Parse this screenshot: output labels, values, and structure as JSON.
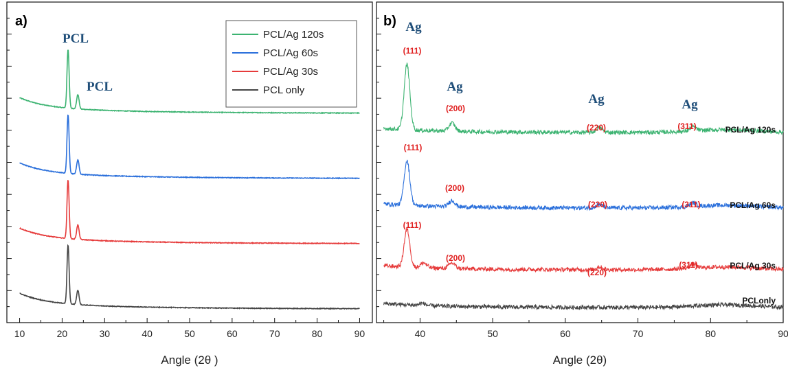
{
  "chart_data": [
    {
      "type": "line",
      "panel_label": "a)",
      "xlabel": "Angle (2θ )",
      "ylabel": "",
      "xlim": [
        7,
        93
      ],
      "xticks": [
        "10",
        "20",
        "30",
        "40",
        "50",
        "60",
        "70",
        "80",
        "90"
      ],
      "yticks_labeled": false,
      "grid": false,
      "legend": {
        "placement": "top-right",
        "entries": [
          "PCL/Ag 120s",
          "PCL/Ag 60s",
          "PCL/Ag 30s",
          "PCL only"
        ]
      },
      "series": [
        {
          "name": "PCL/Ag 120s",
          "color": "#3cb371",
          "offset": 3.0
        },
        {
          "name": "PCL/Ag 60s",
          "color": "#2a6fdb",
          "offset": 2.0
        },
        {
          "name": "PCL/Ag 30s",
          "color": "#e63b3b",
          "offset": 1.0
        },
        {
          "name": "PCL only",
          "color": "#444444",
          "offset": 0.0
        }
      ],
      "peaks": [
        {
          "x": 21.4,
          "height": 0.9,
          "width": 0.35
        },
        {
          "x": 23.7,
          "height": 0.22,
          "width": 0.4
        }
      ],
      "annotations": [
        {
          "text": "PCL",
          "x": 21.4
        },
        {
          "text": "PCL",
          "x": 25.0
        }
      ]
    },
    {
      "type": "line",
      "panel_label": "b)",
      "xlabel": "Angle (2θ)",
      "ylabel": "",
      "xlim": [
        34,
        90
      ],
      "xticks": [
        "40",
        "50",
        "60",
        "70",
        "80",
        "90"
      ],
      "yticks_labeled": false,
      "grid": false,
      "series": [
        {
          "name": "PCL/Ag 120s",
          "color": "#3cb371",
          "offset": 2.55,
          "peaks": [
            {
              "x": 38.2,
              "height": 0.95
            },
            {
              "x": 44.4,
              "height": 0.12
            },
            {
              "x": 64.7,
              "height": 0.07
            },
            {
              "x": 77.6,
              "height": 0.06
            }
          ]
        },
        {
          "name": "PCL/Ag 60s",
          "color": "#2a6fdb",
          "offset": 1.45,
          "peaks": [
            {
              "x": 38.2,
              "height": 0.65
            },
            {
              "x": 44.4,
              "height": 0.09
            },
            {
              "x": 64.7,
              "height": 0.05
            },
            {
              "x": 77.6,
              "height": 0.05
            }
          ]
        },
        {
          "name": "PCL/Ag 30s",
          "color": "#e63b3b",
          "offset": 0.55,
          "peaks": [
            {
              "x": 38.2,
              "height": 0.55
            },
            {
              "x": 40.5,
              "height": 0.07
            },
            {
              "x": 44.4,
              "height": 0.08
            },
            {
              "x": 64.7,
              "height": 0.04
            },
            {
              "x": 77.6,
              "height": 0.06
            }
          ]
        },
        {
          "name": "PCLonly",
          "color": "#444444",
          "offset": 0.0,
          "peaks": [
            {
              "x": 40.3,
              "height": 0.03
            }
          ]
        }
      ],
      "series_tags": [
        "PCL/Ag 120s",
        "PCL/Ag 60s",
        "PCL/Ag 30s",
        "PCLonly"
      ],
      "ag_labels": [
        "Ag",
        "Ag",
        "Ag",
        "Ag"
      ],
      "hkl_labels": [
        {
          "row": "120s",
          "items": [
            "(111)",
            "(200)",
            "(220)",
            "(311)"
          ]
        },
        {
          "row": "60s",
          "items": [
            "(111)",
            "(200)",
            "(220)",
            "(311)"
          ]
        },
        {
          "row": "30s",
          "items": [
            "(111)",
            "(200)",
            "(220)",
            "(311)"
          ]
        }
      ]
    }
  ]
}
